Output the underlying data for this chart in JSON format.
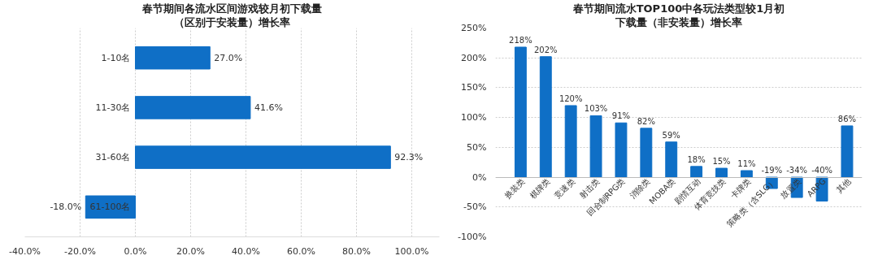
{
  "chart_data": [
    {
      "type": "bar",
      "orientation": "horizontal",
      "title": "春节期间各流水区间游戏较月初下载量",
      "subtitle": "（区别于安装量）增长率",
      "categories": [
        "1-10名",
        "11-30名",
        "31-60名",
        "61-100名"
      ],
      "values": [
        27.0,
        41.6,
        92.3,
        -18.0
      ],
      "value_labels": [
        "27.0%",
        "41.6%",
        "92.3%",
        "-18.0%"
      ],
      "color": "#0f6fc6",
      "xlim": [
        -40,
        110
      ],
      "xticks": [
        {
          "value": -40,
          "label": "-40.0%"
        },
        {
          "value": -20,
          "label": "-20.0%"
        },
        {
          "value": 0,
          "label": "0.0%"
        },
        {
          "value": 20,
          "label": "20.0%"
        },
        {
          "value": 40,
          "label": "40.0%"
        },
        {
          "value": 60,
          "label": "60.0%"
        },
        {
          "value": 80,
          "label": "80.0%"
        },
        {
          "value": 100,
          "label": "100.0%"
        }
      ],
      "grid": "x"
    },
    {
      "type": "bar",
      "title": "春节期间流水TOP100中各玩法类型较1月初",
      "subtitle": "下载量（非安装量）增长率",
      "categories": [
        "换装类",
        "棋牌类",
        "竞速类",
        "射击类",
        "回合制RPG类",
        "消除类",
        "MOBA类",
        "剧情互动",
        "体育竞技类",
        "卡牌类",
        "策略类（含SLG）",
        "放置类",
        "ARPG",
        "其他"
      ],
      "values": [
        218,
        202,
        120,
        103,
        91,
        82,
        59,
        18,
        15,
        11,
        -19,
        -34,
        -40,
        86
      ],
      "value_labels": [
        "218%",
        "202%",
        "120%",
        "103%",
        "91%",
        "82%",
        "59%",
        "18%",
        "15%",
        "11%",
        "-19%",
        "-34%",
        "-40%",
        "86%"
      ],
      "color": "#0f6fc6",
      "ylim": [
        -100,
        250
      ],
      "yticks": [
        {
          "value": -100,
          "label": "-100%"
        },
        {
          "value": -50,
          "label": "-50%"
        },
        {
          "value": 0,
          "label": "0%"
        },
        {
          "value": 50,
          "label": "50%"
        },
        {
          "value": 100,
          "label": "100%"
        },
        {
          "value": 150,
          "label": "150%"
        },
        {
          "value": 200,
          "label": "200%"
        },
        {
          "value": 250,
          "label": "250%"
        }
      ],
      "grid": "y"
    }
  ]
}
